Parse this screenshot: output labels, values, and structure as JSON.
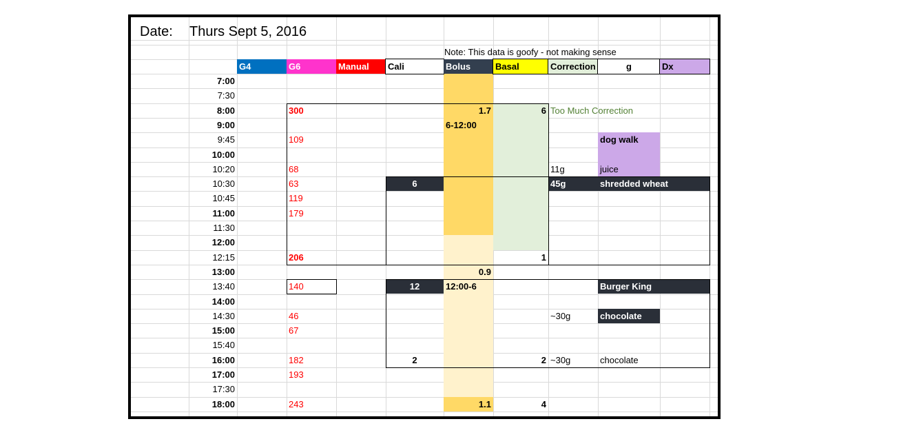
{
  "title": {
    "label": "Date:",
    "value": "Thurs Sept 5, 2016"
  },
  "note": "Note: This data is goofy - not making sense",
  "headers": [
    {
      "key": "g4",
      "label": "G4",
      "bg": "#0070c0",
      "fg": "#ffffff"
    },
    {
      "key": "g6",
      "label": "G6",
      "bg": "#ff33cc",
      "fg": "#ffffff"
    },
    {
      "key": "manual",
      "label": "Manual",
      "bg": "#ff0000",
      "fg": "#ffffff"
    },
    {
      "key": "cali",
      "label": "Cali",
      "bg": "#ffffff",
      "fg": "#000000"
    },
    {
      "key": "bolus",
      "label": "Bolus",
      "bg": "#333f4f",
      "fg": "#ffffff"
    },
    {
      "key": "basal",
      "label": "Basal",
      "bg": "#ffff00",
      "fg": "#000000"
    },
    {
      "key": "correction",
      "label": "Correction",
      "bg": "#e2efda",
      "fg": "#000000"
    },
    {
      "key": "g",
      "label": "g",
      "bg": "#ffffff",
      "fg": "#000000"
    },
    {
      "key": "dx",
      "label": "Dx",
      "bg": "#cca8e8",
      "fg": "#000000"
    }
  ],
  "colors": {
    "basal_fill": "#ffd966",
    "basal_light": "#fff2cc",
    "correction_fill": "#e2efda",
    "dark_fill": "#2a2f38",
    "purple_fill": "#cca8e8",
    "manual_text": "#ff0000",
    "note_green": "#538135"
  },
  "rows": [
    {
      "time": "7:00",
      "time_bold": true
    },
    {
      "time": "7:30",
      "time_bold": false
    },
    {
      "time": "8:00",
      "time_bold": true,
      "manual": "300",
      "manual_bold": true,
      "basal": "1.7",
      "correction": "6",
      "note": "Too Much Correction"
    },
    {
      "time": "9:00",
      "time_bold": true,
      "basal_range": "6-12:00"
    },
    {
      "time": "9:45",
      "time_bold": false,
      "manual": "109",
      "dx": "dog walk"
    },
    {
      "time": "10:00",
      "time_bold": true
    },
    {
      "time": "10:20",
      "time_bold": false,
      "manual": "68",
      "g": "11g",
      "dx": "juice"
    },
    {
      "time": "10:30",
      "time_bold": false,
      "manual": "63",
      "bolus": "6",
      "g": "45g",
      "dx": "shredded wheat"
    },
    {
      "time": "10:45",
      "time_bold": false,
      "manual": "119"
    },
    {
      "time": "11:00",
      "time_bold": true,
      "manual": "179"
    },
    {
      "time": "11:30",
      "time_bold": false
    },
    {
      "time": "12:00",
      "time_bold": true
    },
    {
      "time": "12:15",
      "time_bold": false,
      "manual": "206",
      "manual_bold": true,
      "correction": "1"
    },
    {
      "time": "13:00",
      "time_bold": true,
      "basal": "0.9"
    },
    {
      "time": "13:40",
      "time_bold": false,
      "manual": "140",
      "bolus": "12",
      "basal_range": "12:00-6",
      "dx": "Burger King"
    },
    {
      "time": "14:00",
      "time_bold": true
    },
    {
      "time": "14:30",
      "time_bold": false,
      "manual": "46",
      "g": "~30g",
      "dx": "chocolate"
    },
    {
      "time": "15:00",
      "time_bold": true,
      "manual": "67"
    },
    {
      "time": "15:40",
      "time_bold": false
    },
    {
      "time": "16:00",
      "time_bold": true,
      "manual": "182",
      "bolus": "2",
      "correction": "2",
      "g": "~30g",
      "dx": "chocolate"
    },
    {
      "time": "17:00",
      "time_bold": true,
      "manual": "193"
    },
    {
      "time": "17:30",
      "time_bold": false
    },
    {
      "time": "18:00",
      "time_bold": true,
      "manual": "243",
      "basal": "1.1",
      "correction": "4"
    }
  ]
}
